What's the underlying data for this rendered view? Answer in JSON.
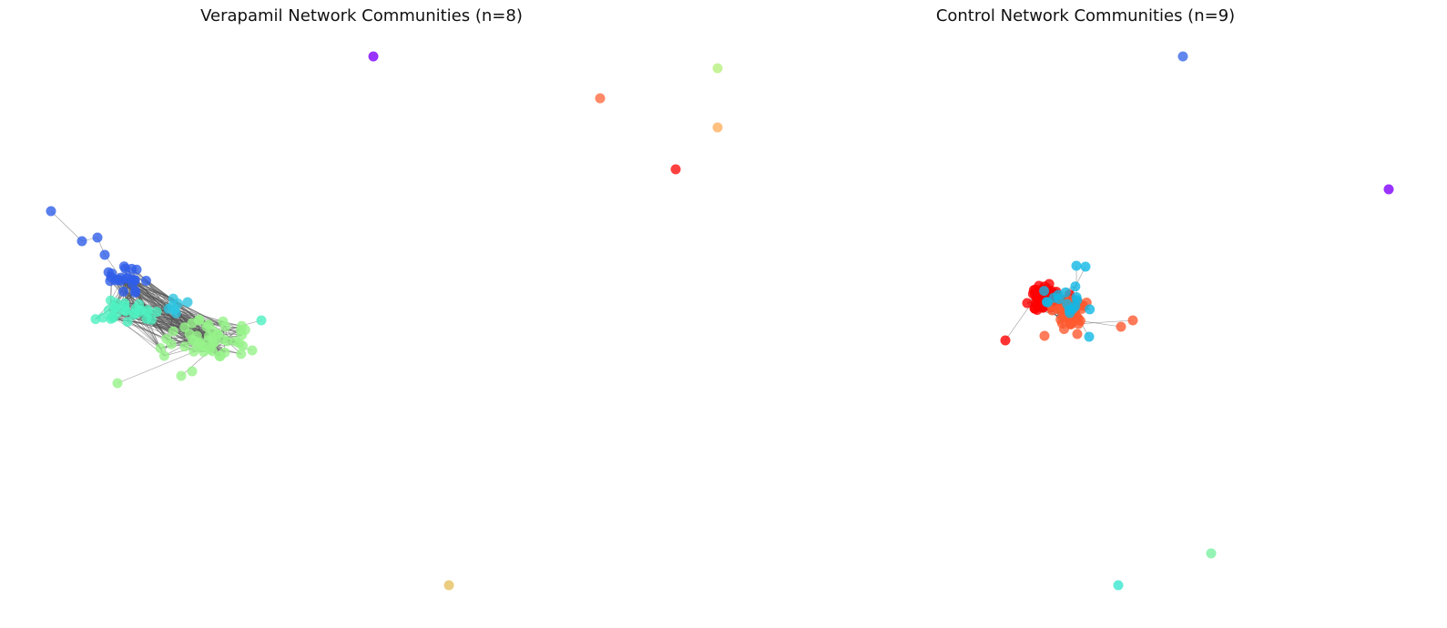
{
  "panels": [
    {
      "title": "Verapamil Network Communities (n=8)",
      "community_colors": {
        "C1": "#2f5ee8",
        "C2": "#2fc4e0",
        "C3": "#4ef0c0",
        "C4": "#96f28a",
        "C5": "#8000ff",
        "C6": "#ff6a40",
        "C7": "#ffb060",
        "C8": "#ff1010",
        "C9": "#b8f080",
        "C10": "#e6c060"
      }
    },
    {
      "title": "Control Network Communities (n=9)",
      "community_colors": {
        "C1": "#ff0000",
        "C2": "#ff5a30",
        "C3": "#10b8e6",
        "C4": "#3a68e8",
        "C5": "#8000ff",
        "C6": "#3ae6d0",
        "C7": "#7af0a0"
      }
    }
  ]
}
